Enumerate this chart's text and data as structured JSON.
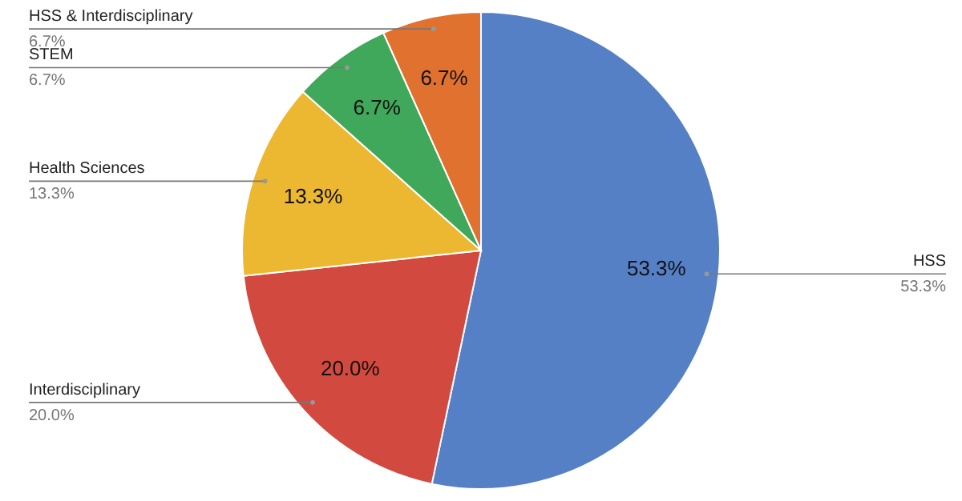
{
  "chart_data": {
    "type": "pie",
    "categories": [
      "HSS",
      "Interdisciplinary",
      "Health Sciences",
      "STEM",
      "HSS & Interdisciplinary"
    ],
    "values": [
      53.3,
      20.0,
      13.3,
      6.7,
      6.7
    ],
    "colors": [
      "#5580c6",
      "#d2493f",
      "#ecb731",
      "#3fa85a",
      "#e0712f"
    ],
    "value_labels": [
      "53.3%",
      "20.0%",
      "13.3%",
      "6.7%",
      "6.7%"
    ]
  }
}
